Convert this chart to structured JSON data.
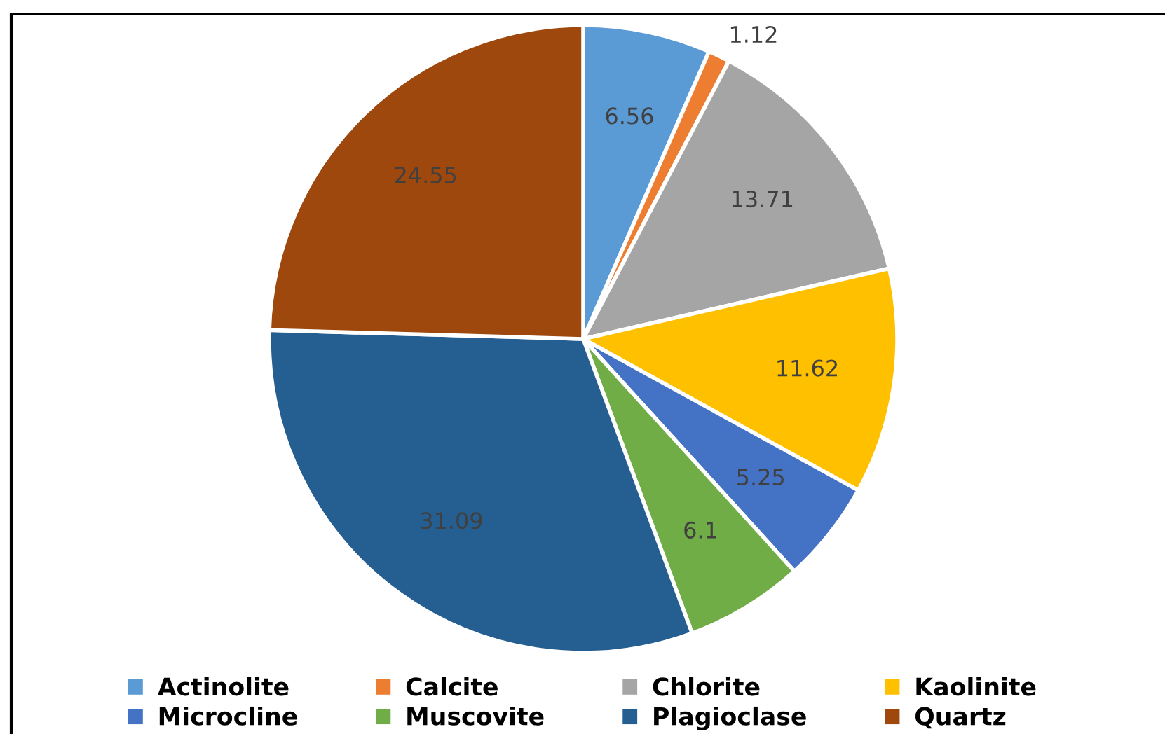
{
  "chart_data": {
    "type": "pie",
    "categories": [
      "Actinolite",
      "Calcite",
      "Chlorite",
      "Kaolinite",
      "Microcline",
      "Muscovite",
      "Plagioclase",
      "Quartz"
    ],
    "values": [
      6.56,
      1.12,
      13.71,
      11.62,
      5.25,
      6.1,
      31.09,
      24.55
    ],
    "colors": [
      "#5b9bd5",
      "#ed7d31",
      "#a5a5a5",
      "#ffc000",
      "#4472c4",
      "#70ad47",
      "#255e91",
      "#9e480e"
    ],
    "data_labels": true,
    "legend": "bottom"
  }
}
